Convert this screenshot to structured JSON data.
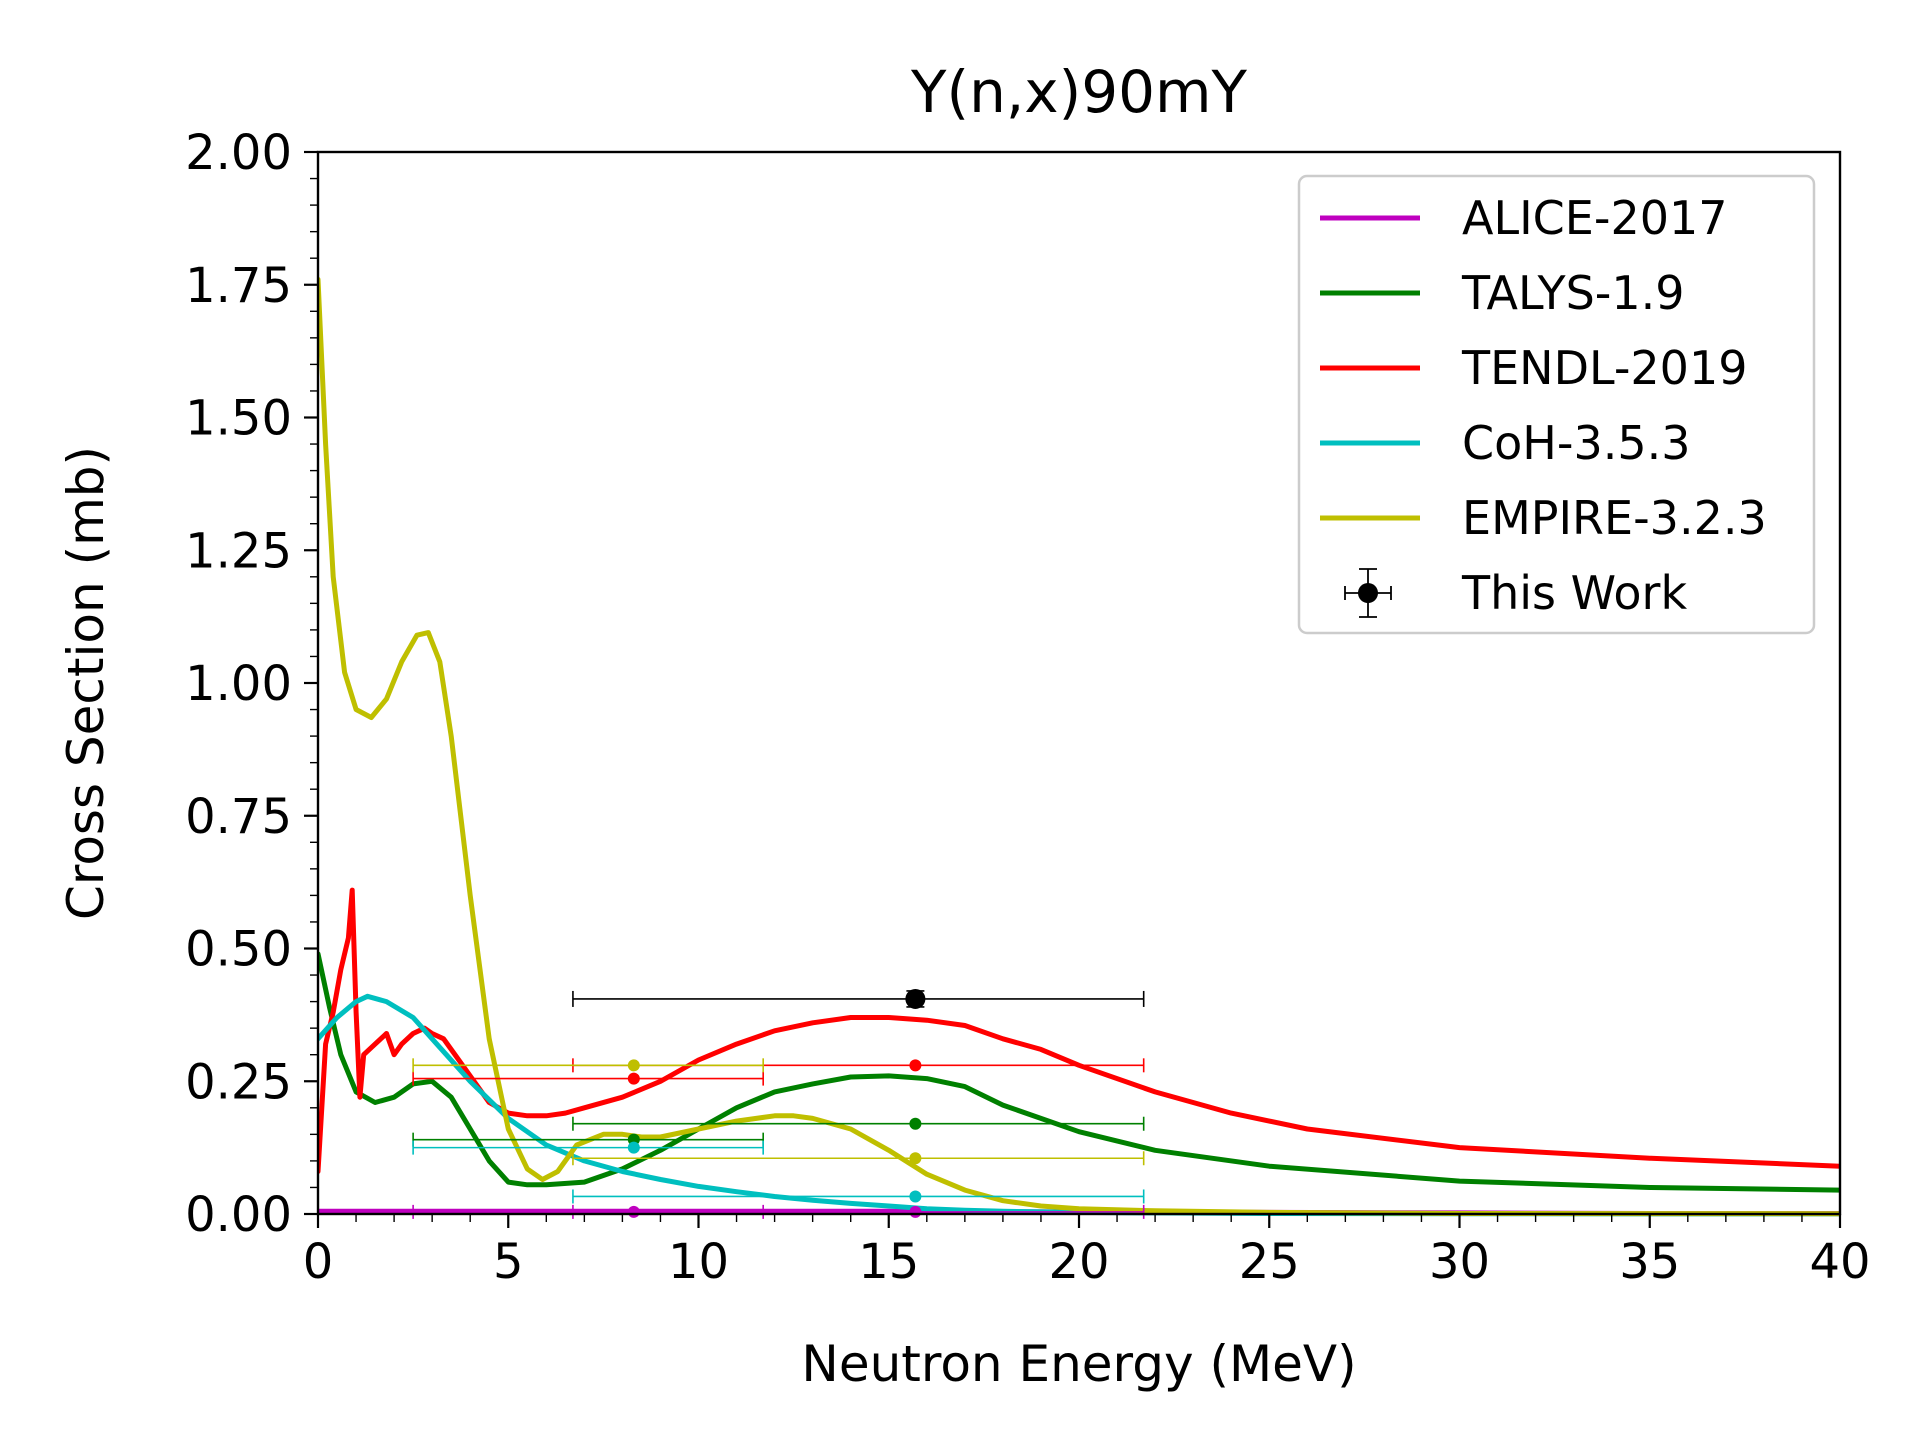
{
  "chart_data": {
    "type": "line",
    "title": "Y(n,x)90mY",
    "xlabel": "Neutron Energy (MeV)",
    "ylabel": "Cross Section (mb)",
    "xlim": [
      0,
      40
    ],
    "ylim": [
      0,
      2.0
    ],
    "x_ticks": [
      "0",
      "5",
      "10",
      "15",
      "20",
      "25",
      "30",
      "35",
      "40"
    ],
    "y_ticks": [
      "0.00",
      "0.25",
      "0.50",
      "0.75",
      "1.00",
      "1.25",
      "1.50",
      "1.75",
      "2.00"
    ],
    "grid": false,
    "legend_position": "upper right",
    "series": [
      {
        "name": "ALICE-2017",
        "color": "#bf00bf",
        "x": [
          0,
          5,
          10,
          15,
          20,
          25,
          30,
          35,
          40
        ],
        "y": [
          0.005,
          0.005,
          0.005,
          0.005,
          0.004,
          0.003,
          0.002,
          0.001,
          0.001
        ],
        "group_points": [
          {
            "x": 8.3,
            "y": 0.004,
            "xmin": 2.5,
            "xmax": 11.7
          },
          {
            "x": 15.7,
            "y": 0.004,
            "xmin": 6.7,
            "xmax": 21.7
          }
        ]
      },
      {
        "name": "TALYS-1.9",
        "color": "#008000",
        "x": [
          0,
          0.3,
          0.6,
          1.0,
          1.5,
          2.0,
          2.5,
          3.0,
          3.5,
          4.0,
          4.5,
          5.0,
          5.5,
          6.0,
          7.0,
          8.0,
          9.0,
          10.0,
          11.0,
          12.0,
          13.0,
          14.0,
          15.0,
          16.0,
          17.0,
          18.0,
          19.0,
          20.0,
          22.0,
          25.0,
          30.0,
          35.0,
          40.0
        ],
        "y": [
          0.49,
          0.39,
          0.3,
          0.23,
          0.21,
          0.22,
          0.245,
          0.25,
          0.22,
          0.16,
          0.1,
          0.06,
          0.055,
          0.055,
          0.06,
          0.085,
          0.12,
          0.16,
          0.2,
          0.23,
          0.245,
          0.258,
          0.26,
          0.255,
          0.24,
          0.205,
          0.18,
          0.155,
          0.12,
          0.09,
          0.062,
          0.05,
          0.045
        ],
        "group_points": [
          {
            "x": 8.3,
            "y": 0.14,
            "xmin": 2.5,
            "xmax": 11.7
          },
          {
            "x": 15.7,
            "y": 0.17,
            "xmin": 6.7,
            "xmax": 21.7
          }
        ]
      },
      {
        "name": "TENDL-2019",
        "color": "#ff0000",
        "x": [
          0,
          0.2,
          0.4,
          0.6,
          0.8,
          0.9,
          1.0,
          1.1,
          1.2,
          1.5,
          1.8,
          2.0,
          2.2,
          2.5,
          2.8,
          3.0,
          3.3,
          3.6,
          4.0,
          4.5,
          5.0,
          5.5,
          6.0,
          6.5,
          7.0,
          8.0,
          9.0,
          10.0,
          11.0,
          12.0,
          13.0,
          14.0,
          15.0,
          16.0,
          17.0,
          18.0,
          19.0,
          20.0,
          22.0,
          24.0,
          26.0,
          30.0,
          35.0,
          40.0
        ],
        "y": [
          0.08,
          0.32,
          0.38,
          0.46,
          0.52,
          0.61,
          0.38,
          0.22,
          0.3,
          0.32,
          0.34,
          0.3,
          0.32,
          0.34,
          0.35,
          0.34,
          0.33,
          0.3,
          0.26,
          0.21,
          0.19,
          0.185,
          0.185,
          0.19,
          0.2,
          0.22,
          0.25,
          0.29,
          0.32,
          0.345,
          0.36,
          0.37,
          0.37,
          0.365,
          0.355,
          0.33,
          0.31,
          0.28,
          0.23,
          0.19,
          0.16,
          0.125,
          0.105,
          0.09
        ],
        "group_points": [
          {
            "x": 8.3,
            "y": 0.255,
            "xmin": 2.5,
            "xmax": 11.7
          },
          {
            "x": 15.7,
            "y": 0.28,
            "xmin": 6.7,
            "xmax": 21.7
          }
        ]
      },
      {
        "name": "CoH-3.5.3",
        "color": "#00bfbf",
        "x": [
          0,
          0.5,
          1.0,
          1.3,
          1.8,
          2.5,
          3.0,
          4.0,
          5.0,
          6.0,
          7.0,
          8.0,
          9.0,
          10.0,
          11.0,
          12.0,
          13.0,
          14.0,
          15.0,
          16.0,
          17.0,
          18.0,
          20.0,
          22.0,
          25.0,
          30.0,
          35.0,
          40.0
        ],
        "y": [
          0.33,
          0.37,
          0.4,
          0.41,
          0.4,
          0.37,
          0.33,
          0.25,
          0.18,
          0.13,
          0.1,
          0.08,
          0.065,
          0.052,
          0.042,
          0.033,
          0.026,
          0.02,
          0.015,
          0.01,
          0.007,
          0.005,
          0.003,
          0.002,
          0.001,
          0.0005,
          0.0002,
          0.0001
        ],
        "group_points": [
          {
            "x": 8.3,
            "y": 0.125,
            "xmin": 2.5,
            "xmax": 11.7
          },
          {
            "x": 15.7,
            "y": 0.033,
            "xmin": 6.7,
            "xmax": 21.7
          }
        ]
      },
      {
        "name": "EMPIRE-3.2.3",
        "color": "#bfbf00",
        "x": [
          0,
          0.2,
          0.4,
          0.7,
          1.0,
          1.4,
          1.8,
          2.2,
          2.6,
          2.9,
          3.2,
          3.5,
          4.0,
          4.5,
          5.0,
          5.5,
          5.9,
          6.3,
          6.8,
          7.5,
          8.0,
          8.5,
          9.0,
          10.0,
          11.0,
          12.0,
          12.5,
          13.0,
          14.0,
          15.0,
          16.0,
          17.0,
          18.0,
          19.0,
          20.0,
          22.0,
          25.0,
          30.0,
          40.0
        ],
        "y": [
          1.76,
          1.45,
          1.2,
          1.02,
          0.95,
          0.935,
          0.97,
          1.04,
          1.09,
          1.095,
          1.04,
          0.9,
          0.6,
          0.33,
          0.16,
          0.085,
          0.065,
          0.08,
          0.13,
          0.15,
          0.15,
          0.145,
          0.145,
          0.16,
          0.175,
          0.185,
          0.185,
          0.18,
          0.16,
          0.12,
          0.075,
          0.045,
          0.025,
          0.015,
          0.01,
          0.006,
          0.003,
          0.001,
          0.0005
        ],
        "group_points": [
          {
            "x": 8.3,
            "y": 0.28,
            "xmin": 2.5,
            "xmax": 11.7
          },
          {
            "x": 15.7,
            "y": 0.105,
            "xmin": 6.7,
            "xmax": 21.7
          }
        ]
      },
      {
        "name": "This Work",
        "color": "#000000",
        "type": "errorbar",
        "points": [
          {
            "x": 15.7,
            "y": 0.405,
            "xmin": 6.7,
            "xmax": 21.7,
            "yerr": 0.015
          }
        ]
      }
    ]
  }
}
